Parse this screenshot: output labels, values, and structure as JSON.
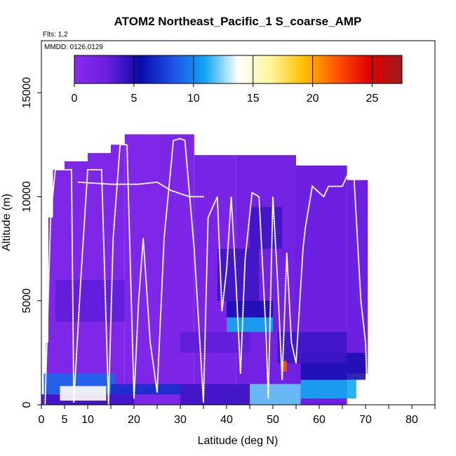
{
  "chart_data": {
    "type": "heatmap",
    "title": "ATOM2 Northeast_Pacific_1 S_coarse_AMP",
    "flights_label": "Flts: 1,2",
    "date_label": "MMDD: 0126,0129",
    "xlabel": "Latitude (deg N)",
    "ylabel": "Altitude (m)",
    "xlim": [
      0,
      85
    ],
    "ylim": [
      0,
      17500
    ],
    "x_ticks": [
      0,
      5,
      10,
      20,
      30,
      40,
      50,
      60,
      70,
      80
    ],
    "y_ticks": [
      0,
      5000,
      10000,
      15000
    ],
    "colorbar": {
      "range": [
        0,
        27.5
      ],
      "ticks": [
        0,
        5,
        10,
        15,
        20,
        25
      ],
      "stops": [
        "#8B2BEE",
        "#6A1FE0",
        "#0A0AA8",
        "#1E4FE8",
        "#12A8F0",
        "#FFFFFF",
        "#FFF59A",
        "#FFC000",
        "#FF5500",
        "#E00000",
        "#9E1B1B"
      ]
    },
    "columns": [
      {
        "lat": [
          0.0,
          1.5
        ],
        "top": 500,
        "base": 0,
        "value": 3
      },
      {
        "lat": [
          1.0,
          2.5
        ],
        "top": 3000,
        "base": 0,
        "value": 1.5
      },
      {
        "lat": [
          1.5,
          3.5
        ],
        "top": 9000,
        "base": 0,
        "value": 1
      },
      {
        "lat": [
          2.5,
          5.0
        ],
        "top": 11300,
        "base": 0,
        "value": 1
      },
      {
        "lat": [
          5.0,
          10.0
        ],
        "top": 11700,
        "base": 0,
        "value": 1
      },
      {
        "lat": [
          10.0,
          15.0
        ],
        "top": 12100,
        "base": 0,
        "value": 1
      },
      {
        "lat": [
          15.0,
          18.0
        ],
        "top": 12500,
        "base": 0,
        "value": 1
      },
      {
        "lat": [
          18.0,
          25.0
        ],
        "top": 13000,
        "base": 0,
        "value": 1
      },
      {
        "lat": [
          25.0,
          33.0
        ],
        "top": 13000,
        "base": 0,
        "value": 1.2
      },
      {
        "lat": [
          33.0,
          42.0
        ],
        "top": 12000,
        "base": 0,
        "value": 1.5
      },
      {
        "lat": [
          42.0,
          55.0
        ],
        "top": 12000,
        "base": 0,
        "value": 2
      },
      {
        "lat": [
          55.0,
          66.0
        ],
        "top": 11500,
        "base": 0,
        "value": 2.5
      },
      {
        "lat": [
          66.0,
          70.5
        ],
        "top": 10800,
        "base": 1500,
        "value": 2.5
      }
    ],
    "features": [
      {
        "lat": [
          0.5,
          20.0
        ],
        "alt": [
          0,
          500
        ],
        "value": 4
      },
      {
        "lat": [
          0.5,
          16.0
        ],
        "alt": [
          500,
          1500
        ],
        "value": 9
      },
      {
        "lat": [
          4.0,
          14.0
        ],
        "alt": [
          200,
          900
        ],
        "value": 14
      },
      {
        "lat": [
          15.0,
          30.0
        ],
        "alt": [
          500,
          1000
        ],
        "value": 7
      },
      {
        "lat": [
          30.0,
          45.0
        ],
        "alt": [
          0,
          1000
        ],
        "value": 4
      },
      {
        "lat": [
          45.0,
          56.0
        ],
        "alt": [
          0,
          1000
        ],
        "value": 12
      },
      {
        "lat": [
          56.0,
          68.0
        ],
        "alt": [
          300,
          1200
        ],
        "value": 11
      },
      {
        "lat": [
          56.0,
          70.0
        ],
        "alt": [
          1200,
          2500
        ],
        "value": 5
      },
      {
        "lat": [
          40.0,
          50.0
        ],
        "alt": [
          3500,
          4200
        ],
        "value": 11
      },
      {
        "lat": [
          40.0,
          50.0
        ],
        "alt": [
          4200,
          5000
        ],
        "value": 5
      },
      {
        "lat": [
          38.0,
          47.0
        ],
        "alt": [
          5000,
          7500
        ],
        "value": 4
      },
      {
        "lat": [
          45.0,
          52.0
        ],
        "alt": [
          7500,
          9500
        ],
        "value": 4
      },
      {
        "lat": [
          51.0,
          66.0
        ],
        "alt": [
          2000,
          3500
        ],
        "value": 4
      },
      {
        "lat": [
          3.0,
          18.0
        ],
        "alt": [
          4000,
          6000
        ],
        "value": 3
      },
      {
        "lat": [
          30.0,
          45.0
        ],
        "alt": [
          2500,
          3500
        ],
        "value": 3
      },
      {
        "lat": [
          52.0,
          53.0
        ],
        "alt": [
          1600,
          2100
        ],
        "value": 22
      }
    ],
    "flight_track": [
      [
        0.8,
        0
      ],
      [
        2.0,
        9000
      ],
      [
        3.0,
        11300
      ],
      [
        5.0,
        11300
      ],
      [
        6.5,
        11300
      ],
      [
        7.0,
        100
      ],
      [
        8.5,
        6000
      ],
      [
        10.0,
        11300
      ],
      [
        13.0,
        11300
      ],
      [
        14.5,
        0
      ],
      [
        15.5,
        8000
      ],
      [
        17.0,
        12500
      ],
      [
        18.5,
        12500
      ],
      [
        20.0,
        300
      ],
      [
        21.0,
        5000
      ],
      [
        22.0,
        8000
      ],
      [
        23.5,
        3000
      ],
      [
        25.0,
        600
      ],
      [
        26.5,
        8000
      ],
      [
        28.0,
        11500
      ],
      [
        28.5,
        12700
      ],
      [
        30.0,
        12800
      ],
      [
        31.0,
        12700
      ],
      [
        33.0,
        7500
      ],
      [
        34.5,
        2000
      ],
      [
        35.0,
        100
      ],
      [
        36.0,
        9000
      ],
      [
        38.0,
        10000
      ],
      [
        39.0,
        4500
      ],
      [
        40.0,
        6500
      ],
      [
        41.0,
        10000
      ],
      [
        42.0,
        6000
      ],
      [
        43.0,
        1500
      ],
      [
        44.0,
        7000
      ],
      [
        45.5,
        10200
      ],
      [
        47.0,
        10000
      ],
      [
        48.5,
        3500
      ],
      [
        49.0,
        300
      ],
      [
        50.0,
        10000
      ],
      [
        51.0,
        6000
      ],
      [
        52.0,
        1200
      ],
      [
        53.0,
        7300
      ],
      [
        54.0,
        3000
      ],
      [
        55.0,
        2000
      ],
      [
        56.5,
        7500
      ],
      [
        57.0,
        8500
      ],
      [
        58.5,
        10500
      ],
      [
        60.0,
        10200
      ],
      [
        61.0,
        10000
      ],
      [
        62.0,
        10500
      ],
      [
        63.0,
        10500
      ],
      [
        64.0,
        10500
      ],
      [
        65.0,
        10500
      ],
      [
        66.0,
        11000
      ],
      [
        67.5,
        11000
      ],
      [
        68.0,
        9000
      ],
      [
        69.0,
        5000
      ],
      [
        70.0,
        3000
      ],
      [
        70.5,
        0
      ]
    ],
    "flight_track_2": [
      [
        8.0,
        10700
      ],
      [
        15.0,
        10600
      ],
      [
        21.0,
        10600
      ],
      [
        25.0,
        10700
      ],
      [
        28.0,
        10300
      ],
      [
        32.0,
        10000
      ],
      [
        35.0,
        10000
      ]
    ]
  }
}
